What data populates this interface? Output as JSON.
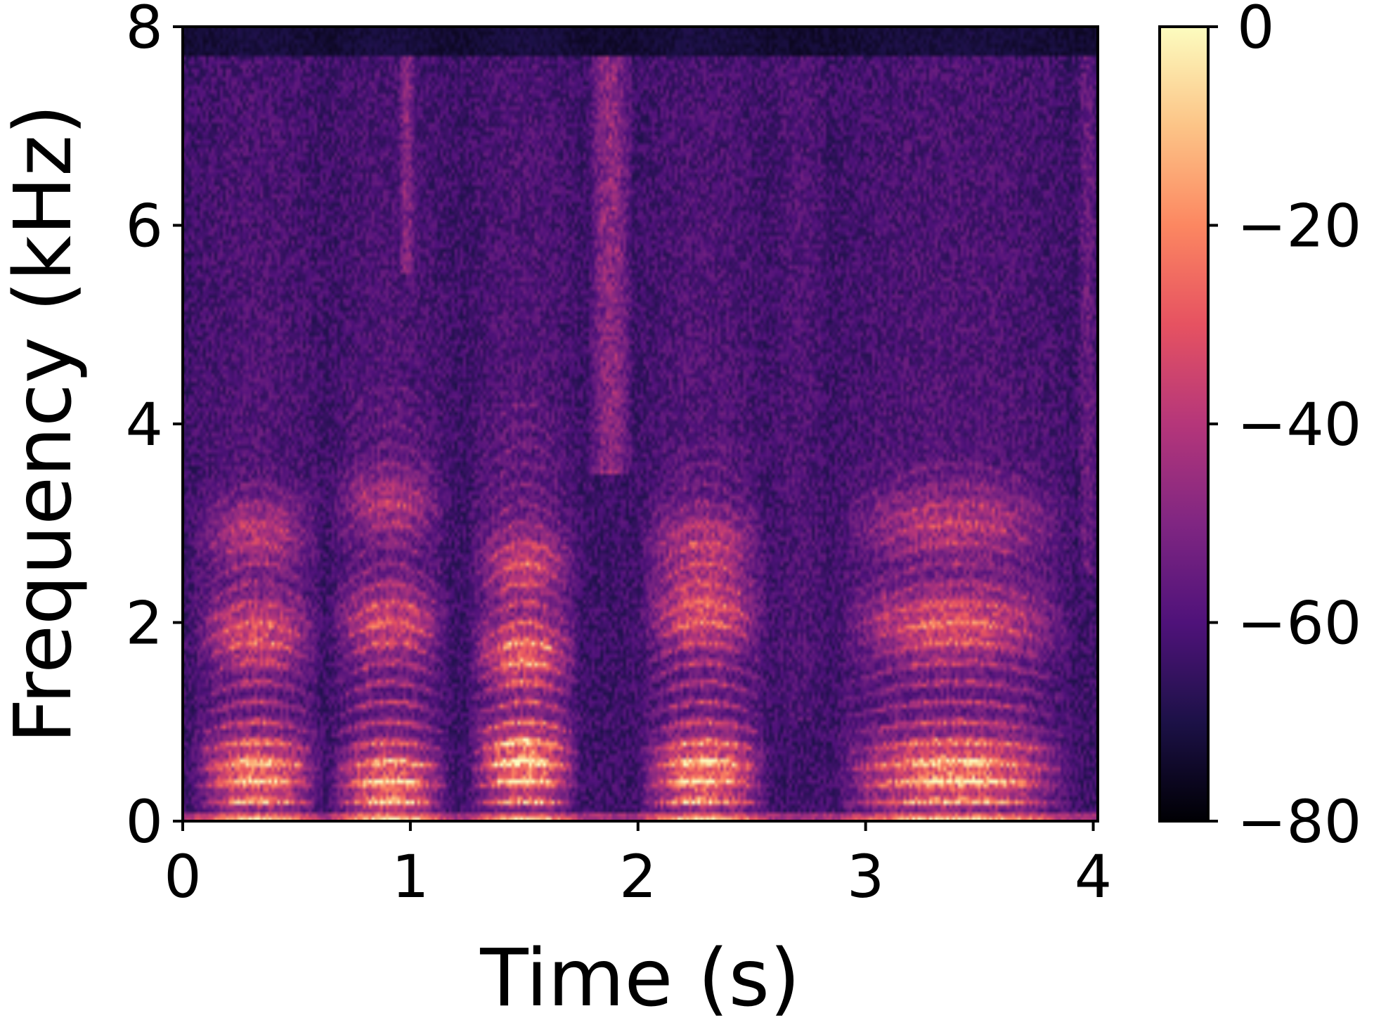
{
  "chart_data": {
    "type": "heatmap",
    "subtype": "spectrogram",
    "title": "",
    "xlabel": "Time (s)",
    "ylabel": "Frequency (kHz)",
    "xlim": [
      0,
      4.02
    ],
    "ylim": [
      0,
      8
    ],
    "xticks": [
      "0",
      "1",
      "2",
      "3",
      "4"
    ],
    "yticks": [
      "0",
      "2",
      "4",
      "6",
      "8"
    ],
    "grid": false,
    "colormap": "magma",
    "colorbar": {
      "range_db": [
        -80,
        0
      ],
      "ticks": [
        "0",
        "−20",
        "−40",
        "−60",
        "−80"
      ]
    },
    "content_bandwidth_khz": 7.7,
    "segments": [
      {
        "start": 0.03,
        "end": 0.62,
        "voiced": true,
        "intensity": 0.85,
        "harmonics_top_khz": 3.4,
        "formants_khz": [
          0.5,
          1.9,
          2.9
        ]
      },
      {
        "start": 0.64,
        "end": 1.18,
        "voiced": true,
        "intensity": 0.82,
        "harmonics_top_khz": 4.4,
        "formants_khz": [
          0.4,
          2.0,
          3.2
        ]
      },
      {
        "start": 0.95,
        "end": 1.02,
        "voiced": false,
        "intensity": 0.55,
        "fric_low_khz": 5.5
      },
      {
        "start": 1.25,
        "end": 1.75,
        "voiced": true,
        "intensity": 0.95,
        "harmonics_top_khz": 4.2,
        "formants_khz": [
          0.6,
          1.7,
          2.6
        ]
      },
      {
        "start": 1.78,
        "end": 1.98,
        "voiced": false,
        "intensity": 0.7,
        "fric_low_khz": 3.5
      },
      {
        "start": 2.0,
        "end": 2.58,
        "voiced": true,
        "intensity": 0.9,
        "harmonics_top_khz": 3.8,
        "formants_khz": [
          0.5,
          2.1,
          2.8
        ]
      },
      {
        "start": 2.58,
        "end": 2.84,
        "voiced": false,
        "intensity": 0.15,
        "fric_low_khz": 1.0
      },
      {
        "start": 2.86,
        "end": 3.92,
        "voiced": true,
        "intensity": 0.88,
        "harmonics_top_khz": 3.6,
        "formants_khz": [
          0.5,
          2.0,
          3.0
        ]
      },
      {
        "start": 3.93,
        "end": 4.02,
        "voiced": false,
        "intensity": 0.35,
        "fric_low_khz": 2.5
      }
    ]
  }
}
